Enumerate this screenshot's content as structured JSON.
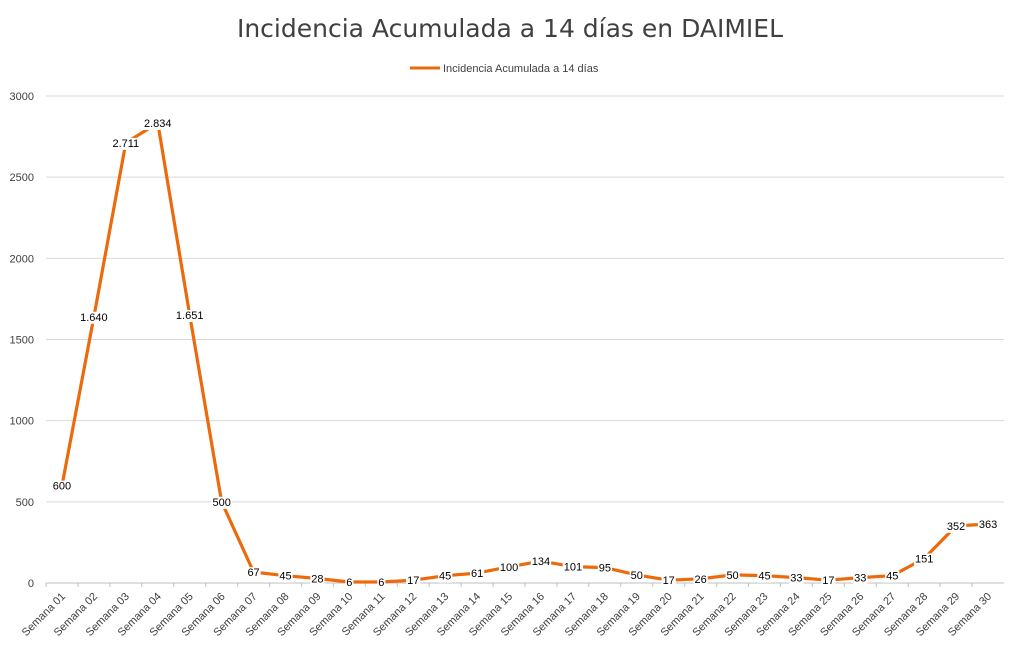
{
  "chart_data": {
    "type": "line",
    "title": "Incidencia Acumulada a 14 días  en DAIMIEL",
    "legend_position": "top",
    "grid": true,
    "ylim": [
      0,
      3000
    ],
    "yticks": [
      "0",
      "500",
      "1000",
      "1500",
      "2000",
      "2500",
      "3000"
    ],
    "categories": [
      "Semana 01",
      "Semana 02",
      "Semana 03",
      "Semana 04",
      "Semana 05",
      "Semana 06",
      "Semana 07",
      "Semana 08",
      "Semana 09",
      "Semana 10",
      "Semana 11",
      "Semana 12",
      "Semana 13",
      "Semana 14",
      "Semana 15",
      "Semana 16",
      "Semana 17",
      "Semana 18",
      "Semana 19",
      "Semana 20",
      "Semana 21",
      "Semana 22",
      "Semana 23",
      "Semana 24",
      "Semana 25",
      "Semana 26",
      "Semana 27",
      "Semana 28",
      "Semana 29",
      "Semana 30"
    ],
    "series": [
      {
        "name": "Incidencia Acumulada a 14 días",
        "color": "#ED6A0C",
        "values": [
          600,
          1640,
          2711,
          2834,
          1651,
          500,
          67,
          45,
          28,
          6,
          6,
          17,
          45,
          61,
          100,
          134,
          101,
          95,
          50,
          17,
          26,
          50,
          45,
          33,
          17,
          33,
          45,
          151,
          352,
          363
        ],
        "labels": [
          "600",
          "1.640",
          "2.711",
          "2.834",
          "1.651",
          "500",
          "67",
          "45",
          "28",
          "6",
          "6",
          "17",
          "45",
          "61",
          "100",
          "134",
          "101",
          "95",
          "50",
          "17",
          "26",
          "50",
          "45",
          "33",
          "17",
          "33",
          "45",
          "151",
          "352",
          "363"
        ]
      }
    ]
  }
}
